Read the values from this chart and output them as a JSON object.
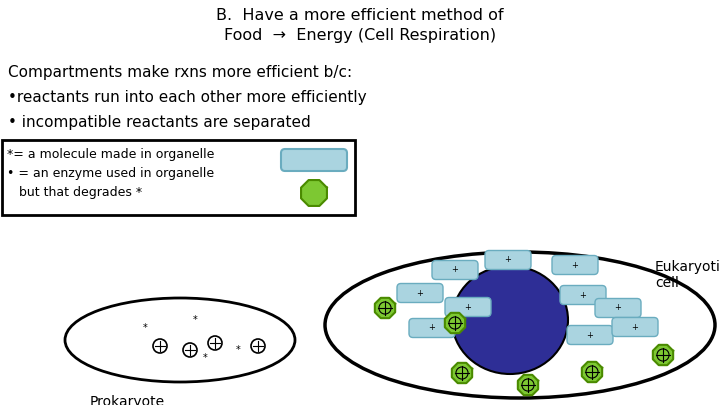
{
  "title_line1": "B.  Have a more efficient method of",
  "title_line2": "Food  →  Energy (Cell Respiration)",
  "bullet1": "Compartments make rxns more efficient b/c:",
  "bullet2": "•reactants run into each other more efficiently",
  "bullet3": "• incompatible reactants are separated",
  "legend_line1": "*= a molecule made in organelle",
  "legend_line2": "• = an enzyme used in organelle",
  "legend_line3": "   but that degrades *",
  "label_prokaryote": "Prokaryote",
  "label_eukaryote": "Eukaryotic\ncell",
  "bg_color": "#ffffff",
  "cell_outline": "#000000",
  "nucleus_color": "#2e2e96",
  "organelle_color": "#7dc832",
  "organelle_outline": "#4a8a00",
  "molecule_color": "#aad4e0",
  "molecule_outline": "#6aacbf",
  "font_color": "#000000"
}
